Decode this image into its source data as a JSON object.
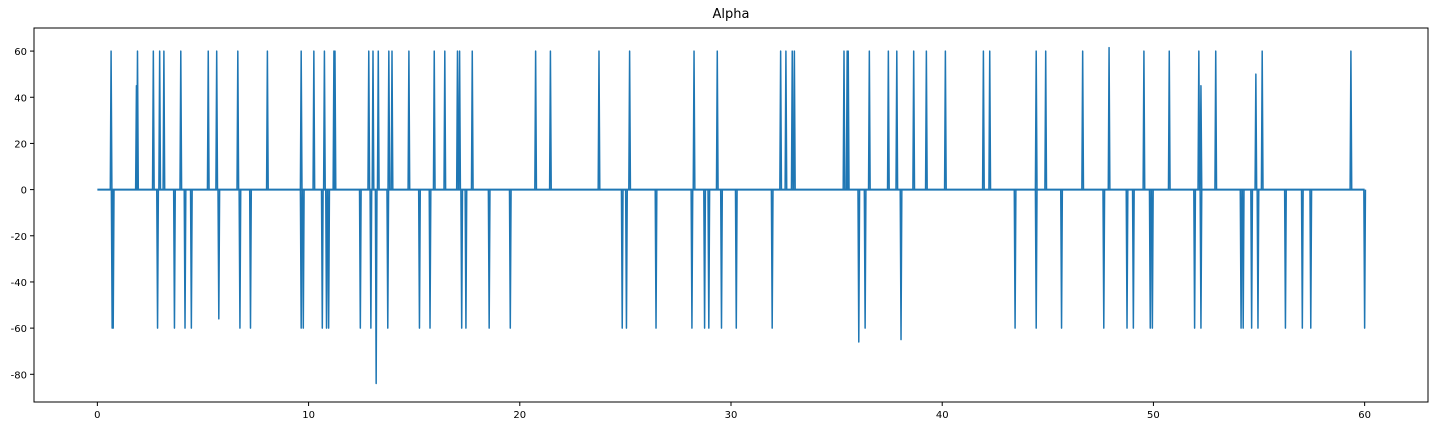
{
  "chart_data": {
    "type": "line",
    "title": "Alpha",
    "xlabel": "",
    "ylabel": "",
    "xlim": [
      -3,
      63
    ],
    "ylim": [
      -92,
      70
    ],
    "xticks": [
      0,
      10,
      20,
      30,
      40,
      50,
      60
    ],
    "yticks": [
      60,
      40,
      20,
      0,
      -20,
      -40,
      -60,
      -80
    ],
    "grid": false,
    "legend": "none",
    "line_color": "#1f77b4",
    "series": [
      {
        "baseline": 0,
        "x_range": [
          0,
          60
        ],
        "positive_spikes": [
          {
            "x": 0.65,
            "y": 60
          },
          {
            "x": 1.85,
            "y": 45
          },
          {
            "x": 1.9,
            "y": 60
          },
          {
            "x": 2.65,
            "y": 60
          },
          {
            "x": 2.95,
            "y": 60
          },
          {
            "x": 3.15,
            "y": 60
          },
          {
            "x": 3.95,
            "y": 60
          },
          {
            "x": 5.25,
            "y": 60
          },
          {
            "x": 5.65,
            "y": 60
          },
          {
            "x": 6.65,
            "y": 60
          },
          {
            "x": 8.05,
            "y": 60
          },
          {
            "x": 9.65,
            "y": 60
          },
          {
            "x": 10.25,
            "y": 60
          },
          {
            "x": 10.75,
            "y": 60
          },
          {
            "x": 11.2,
            "y": 60
          },
          {
            "x": 11.25,
            "y": 60
          },
          {
            "x": 12.85,
            "y": 60
          },
          {
            "x": 13.05,
            "y": 60
          },
          {
            "x": 13.3,
            "y": 60
          },
          {
            "x": 13.8,
            "y": 60
          },
          {
            "x": 13.95,
            "y": 60
          },
          {
            "x": 14.75,
            "y": 60
          },
          {
            "x": 15.95,
            "y": 60
          },
          {
            "x": 16.45,
            "y": 60
          },
          {
            "x": 17.05,
            "y": 60
          },
          {
            "x": 17.15,
            "y": 60
          },
          {
            "x": 17.75,
            "y": 60
          },
          {
            "x": 20.75,
            "y": 60
          },
          {
            "x": 21.45,
            "y": 60
          },
          {
            "x": 23.75,
            "y": 60
          },
          {
            "x": 25.2,
            "y": 60
          },
          {
            "x": 28.25,
            "y": 60
          },
          {
            "x": 29.35,
            "y": 60
          },
          {
            "x": 32.35,
            "y": 60
          },
          {
            "x": 32.6,
            "y": 60
          },
          {
            "x": 32.9,
            "y": 60
          },
          {
            "x": 33.0,
            "y": 60
          },
          {
            "x": 35.35,
            "y": 60
          },
          {
            "x": 35.5,
            "y": 60
          },
          {
            "x": 35.55,
            "y": 60
          },
          {
            "x": 36.55,
            "y": 60
          },
          {
            "x": 37.45,
            "y": 60
          },
          {
            "x": 37.85,
            "y": 60
          },
          {
            "x": 38.65,
            "y": 60
          },
          {
            "x": 39.25,
            "y": 60
          },
          {
            "x": 40.15,
            "y": 60
          },
          {
            "x": 41.95,
            "y": 60
          },
          {
            "x": 42.25,
            "y": 60
          },
          {
            "x": 44.45,
            "y": 60
          },
          {
            "x": 44.9,
            "y": 60
          },
          {
            "x": 46.65,
            "y": 60
          },
          {
            "x": 47.9,
            "y": 61.5
          },
          {
            "x": 49.55,
            "y": 60
          },
          {
            "x": 50.75,
            "y": 60
          },
          {
            "x": 52.15,
            "y": 60
          },
          {
            "x": 52.25,
            "y": 45
          },
          {
            "x": 52.95,
            "y": 60
          },
          {
            "x": 54.85,
            "y": 50
          },
          {
            "x": 55.15,
            "y": 60
          },
          {
            "x": 59.35,
            "y": 60
          }
        ],
        "negative_spikes": [
          {
            "x": 0.7,
            "y": -60
          },
          {
            "x": 0.75,
            "y": -60
          },
          {
            "x": 2.85,
            "y": -60
          },
          {
            "x": 3.65,
            "y": -60
          },
          {
            "x": 4.15,
            "y": -60
          },
          {
            "x": 4.45,
            "y": -60
          },
          {
            "x": 5.75,
            "y": -56
          },
          {
            "x": 6.75,
            "y": -60
          },
          {
            "x": 7.25,
            "y": -60
          },
          {
            "x": 9.65,
            "y": -60
          },
          {
            "x": 9.75,
            "y": -60
          },
          {
            "x": 10.65,
            "y": -60
          },
          {
            "x": 10.85,
            "y": -60
          },
          {
            "x": 10.95,
            "y": -60
          },
          {
            "x": 12.45,
            "y": -60
          },
          {
            "x": 12.95,
            "y": -60
          },
          {
            "x": 13.2,
            "y": -84
          },
          {
            "x": 13.75,
            "y": -60
          },
          {
            "x": 15.25,
            "y": -60
          },
          {
            "x": 15.75,
            "y": -60
          },
          {
            "x": 17.25,
            "y": -60
          },
          {
            "x": 17.45,
            "y": -60
          },
          {
            "x": 18.55,
            "y": -60
          },
          {
            "x": 19.55,
            "y": -60
          },
          {
            "x": 24.85,
            "y": -60
          },
          {
            "x": 25.05,
            "y": -60
          },
          {
            "x": 26.45,
            "y": -60
          },
          {
            "x": 28.15,
            "y": -60
          },
          {
            "x": 28.75,
            "y": -60
          },
          {
            "x": 28.95,
            "y": -60
          },
          {
            "x": 29.55,
            "y": -60
          },
          {
            "x": 30.25,
            "y": -60
          },
          {
            "x": 31.95,
            "y": -60
          },
          {
            "x": 36.05,
            "y": -66
          },
          {
            "x": 36.35,
            "y": -60
          },
          {
            "x": 38.05,
            "y": -65
          },
          {
            "x": 43.45,
            "y": -60
          },
          {
            "x": 44.45,
            "y": -60
          },
          {
            "x": 45.65,
            "y": -60
          },
          {
            "x": 47.65,
            "y": -60
          },
          {
            "x": 48.75,
            "y": -60
          },
          {
            "x": 49.05,
            "y": -60
          },
          {
            "x": 49.85,
            "y": -60
          },
          {
            "x": 49.95,
            "y": -60
          },
          {
            "x": 51.95,
            "y": -60
          },
          {
            "x": 52.25,
            "y": -60
          },
          {
            "x": 54.15,
            "y": -60
          },
          {
            "x": 54.25,
            "y": -60
          },
          {
            "x": 54.65,
            "y": -60
          },
          {
            "x": 54.95,
            "y": -60
          },
          {
            "x": 56.25,
            "y": -60
          },
          {
            "x": 57.05,
            "y": -60
          },
          {
            "x": 57.45,
            "y": -60
          },
          {
            "x": 60.0,
            "y": -60
          }
        ]
      }
    ]
  }
}
